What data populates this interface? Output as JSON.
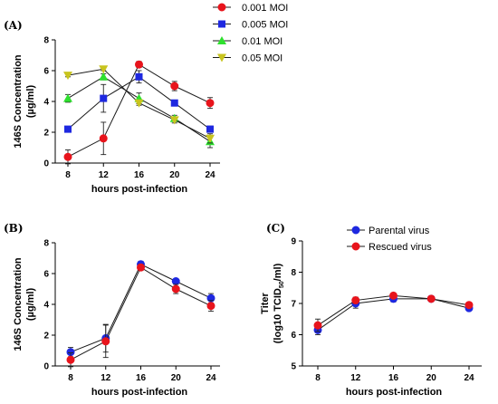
{
  "chart_data": [
    {
      "panel": "(A)",
      "type": "line",
      "xlabel": "hours post-infection",
      "ylabel_lines": [
        "146S Concentration",
        "(µg/ml)"
      ],
      "x": [
        8,
        12,
        16,
        20,
        24
      ],
      "ylim": [
        0,
        8
      ],
      "yticks": [
        0,
        2,
        4,
        6,
        8
      ],
      "legend_position": "top-right",
      "series": [
        {
          "name": "0.001 MOI",
          "color": "#e8141c",
          "marker": "circle",
          "values": [
            0.4,
            1.6,
            6.4,
            5.0,
            3.9
          ],
          "errors": [
            0.45,
            1.05,
            0.2,
            0.3,
            0.35
          ]
        },
        {
          "name": "0.005 MOI",
          "color": "#1e28e0",
          "marker": "square",
          "values": [
            2.2,
            4.2,
            5.6,
            3.9,
            2.2
          ],
          "errors": [
            0.15,
            0.9,
            0.4,
            0.15,
            0.2
          ]
        },
        {
          "name": "0.01 MOI",
          "color": "#2ee02e",
          "marker": "triangle-up",
          "values": [
            4.2,
            5.6,
            4.2,
            2.9,
            1.4
          ],
          "errors": [
            0.25,
            0.2,
            0.35,
            0.2,
            0.4
          ]
        },
        {
          "name": "0.05 MOI",
          "color": "#c8c41e",
          "marker": "triangle-down",
          "values": [
            5.7,
            6.1,
            3.9,
            2.8,
            1.6
          ],
          "errors": [
            0.1,
            0.1,
            0.15,
            0.2,
            0.3
          ]
        }
      ]
    },
    {
      "panel": "(B)",
      "type": "line",
      "xlabel": "hours post-infection",
      "ylabel_lines": [
        "146S Concentration",
        "(µg/ml)"
      ],
      "x": [
        8,
        12,
        16,
        20,
        24
      ],
      "ylim": [
        0,
        8
      ],
      "yticks": [
        0,
        2,
        4,
        6,
        8
      ],
      "series": [
        {
          "name": "Parental virus",
          "color": "#1e28e0",
          "marker": "circle",
          "values": [
            0.9,
            1.8,
            6.6,
            5.5,
            4.4
          ],
          "errors": [
            0.3,
            0.9,
            0.2,
            0.15,
            0.3
          ]
        },
        {
          "name": "Rescued virus",
          "color": "#e8141c",
          "marker": "circle",
          "values": [
            0.4,
            1.6,
            6.4,
            5.0,
            3.9
          ],
          "errors": [
            0.45,
            1.05,
            0.2,
            0.3,
            0.35
          ]
        }
      ]
    },
    {
      "panel": "(C)",
      "type": "line",
      "xlabel": "hours post-infection",
      "ylabel_lines": [
        "Titer",
        "(log10 TCID50/ml)"
      ],
      "x": [
        8,
        12,
        16,
        20,
        24
      ],
      "ylim": [
        5,
        9
      ],
      "yticks": [
        5,
        6,
        7,
        8,
        9
      ],
      "legend_position": "top-right",
      "series": [
        {
          "name": "Parental virus",
          "color": "#1e28e0",
          "marker": "circle",
          "values": [
            6.15,
            7.0,
            7.15,
            7.15,
            6.85
          ],
          "errors": [
            0.15,
            0.15,
            0.1,
            0.05,
            0.08
          ]
        },
        {
          "name": "Rescued virus",
          "color": "#e8141c",
          "marker": "circle",
          "values": [
            6.3,
            7.1,
            7.25,
            7.15,
            6.95
          ],
          "errors": [
            0.2,
            0.1,
            0.05,
            0.05,
            0.05
          ]
        }
      ]
    }
  ]
}
